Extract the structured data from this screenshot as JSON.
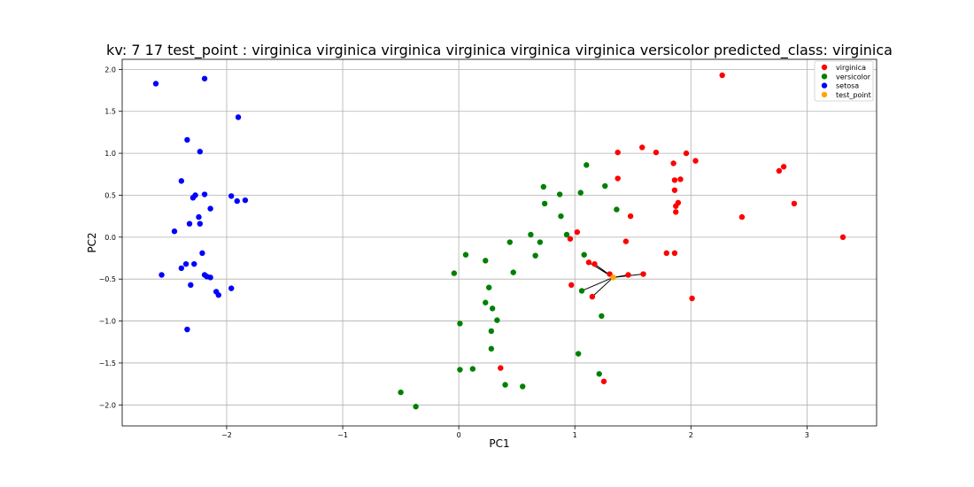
{
  "chart_data": {
    "type": "scatter",
    "title": "kv: 7 17 test_point : virginica virginica virginica virginica virginica virginica versicolor   predicted_class: virginica",
    "xlabel": "PC1",
    "ylabel": "PC2",
    "xlim": [
      -2.9,
      3.6
    ],
    "ylim": [
      -2.25,
      2.12
    ],
    "xticks": [
      -2,
      -1,
      0,
      1,
      2,
      3
    ],
    "xtick_labels": [
      "−2",
      "−1",
      "0",
      "1",
      "2",
      "3"
    ],
    "yticks": [
      2.0,
      1.5,
      1.0,
      0.5,
      0.0,
      -0.5,
      -1.0,
      -1.5,
      -2.0
    ],
    "ytick_labels": [
      "2.0",
      "1.5",
      "1.0",
      "0.5",
      "0.0",
      "−0.5",
      "−1.0",
      "−1.5",
      "−2.0"
    ],
    "grid": true,
    "legend_position": "top-right",
    "series": [
      {
        "name": "virginica",
        "color": "#ff0000",
        "points": [
          [
            2.27,
            1.93
          ],
          [
            1.58,
            1.07
          ],
          [
            1.7,
            1.01
          ],
          [
            1.37,
            1.01
          ],
          [
            1.96,
            1.0
          ],
          [
            2.04,
            0.91
          ],
          [
            1.85,
            0.88
          ],
          [
            2.8,
            0.84
          ],
          [
            2.76,
            0.79
          ],
          [
            1.37,
            0.7
          ],
          [
            1.86,
            0.68
          ],
          [
            1.91,
            0.69
          ],
          [
            1.86,
            0.56
          ],
          [
            2.89,
            0.4
          ],
          [
            1.89,
            0.41
          ],
          [
            1.87,
            0.37
          ],
          [
            1.87,
            0.3
          ],
          [
            1.48,
            0.25
          ],
          [
            2.44,
            0.24
          ],
          [
            3.31,
            0.0
          ],
          [
            1.02,
            0.06
          ],
          [
            0.96,
            -0.02
          ],
          [
            1.44,
            -0.05
          ],
          [
            1.79,
            -0.19
          ],
          [
            1.86,
            -0.19
          ],
          [
            1.12,
            -0.3
          ],
          [
            1.17,
            -0.32
          ],
          [
            1.3,
            -0.44
          ],
          [
            1.59,
            -0.44
          ],
          [
            1.46,
            -0.45
          ],
          [
            0.97,
            -0.57
          ],
          [
            1.15,
            -0.71
          ],
          [
            2.01,
            -0.73
          ],
          [
            0.36,
            -1.56
          ],
          [
            1.25,
            -1.72
          ]
        ]
      },
      {
        "name": "versicolor",
        "color": "#008000",
        "points": [
          [
            1.1,
            0.86
          ],
          [
            0.73,
            0.6
          ],
          [
            1.26,
            0.61
          ],
          [
            1.05,
            0.53
          ],
          [
            0.87,
            0.51
          ],
          [
            0.74,
            0.4
          ],
          [
            1.36,
            0.33
          ],
          [
            0.88,
            0.25
          ],
          [
            0.62,
            0.03
          ],
          [
            0.93,
            0.03
          ],
          [
            0.44,
            -0.06
          ],
          [
            0.7,
            -0.06
          ],
          [
            0.06,
            -0.21
          ],
          [
            0.66,
            -0.22
          ],
          [
            1.08,
            -0.21
          ],
          [
            0.23,
            -0.28
          ],
          [
            -0.04,
            -0.43
          ],
          [
            0.47,
            -0.42
          ],
          [
            0.26,
            -0.6
          ],
          [
            1.06,
            -0.64
          ],
          [
            0.23,
            -0.78
          ],
          [
            0.29,
            -0.85
          ],
          [
            1.23,
            -0.94
          ],
          [
            0.33,
            -0.99
          ],
          [
            0.01,
            -1.03
          ],
          [
            0.28,
            -1.12
          ],
          [
            0.28,
            -1.33
          ],
          [
            1.03,
            -1.39
          ],
          [
            0.12,
            -1.57
          ],
          [
            0.01,
            -1.58
          ],
          [
            1.21,
            -1.63
          ],
          [
            0.4,
            -1.76
          ],
          [
            0.55,
            -1.78
          ],
          [
            -0.5,
            -1.85
          ],
          [
            -0.37,
            -2.02
          ]
        ]
      },
      {
        "name": "setosa",
        "color": "#0000ff",
        "points": [
          [
            -2.61,
            1.83
          ],
          [
            -2.19,
            1.89
          ],
          [
            -1.9,
            1.43
          ],
          [
            -2.34,
            1.16
          ],
          [
            -2.23,
            1.02
          ],
          [
            -2.39,
            0.67
          ],
          [
            -2.19,
            0.51
          ],
          [
            -2.27,
            0.5
          ],
          [
            -2.29,
            0.47
          ],
          [
            -1.96,
            0.49
          ],
          [
            -1.91,
            0.43
          ],
          [
            -1.84,
            0.44
          ],
          [
            -2.14,
            0.34
          ],
          [
            -2.24,
            0.24
          ],
          [
            -2.32,
            0.16
          ],
          [
            -2.23,
            0.16
          ],
          [
            -2.45,
            0.07
          ],
          [
            -2.21,
            -0.19
          ],
          [
            -2.35,
            -0.32
          ],
          [
            -2.28,
            -0.32
          ],
          [
            -2.39,
            -0.37
          ],
          [
            -2.56,
            -0.45
          ],
          [
            -2.19,
            -0.45
          ],
          [
            -2.17,
            -0.47
          ],
          [
            -2.14,
            -0.48
          ],
          [
            -1.96,
            -0.61
          ],
          [
            -2.31,
            -0.57
          ],
          [
            -2.09,
            -0.65
          ],
          [
            -2.07,
            -0.69
          ],
          [
            -2.34,
            -1.1
          ]
        ]
      },
      {
        "name": "test_point",
        "color": "#ffa500",
        "points": [
          [
            1.33,
            -0.48
          ]
        ]
      }
    ],
    "neighbor_lines": {
      "from": [
        1.33,
        -0.48
      ],
      "to": [
        [
          1.12,
          -0.3
        ],
        [
          1.17,
          -0.32
        ],
        [
          1.3,
          -0.44
        ],
        [
          1.46,
          -0.45
        ],
        [
          1.59,
          -0.44
        ],
        [
          1.15,
          -0.71
        ],
        [
          1.06,
          -0.64
        ]
      ],
      "color": "#000000"
    }
  }
}
